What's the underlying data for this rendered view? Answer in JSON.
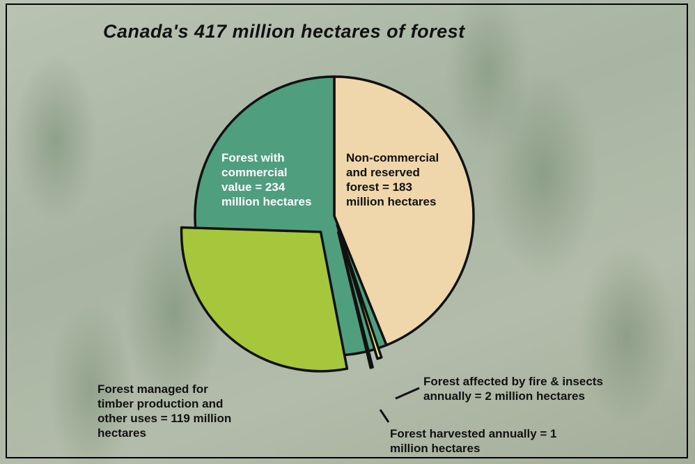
{
  "chart_data": {
    "type": "pie",
    "title": "Canada's 417 million hectares of forest",
    "slices": [
      {
        "name": "Non-commercial and reserved forest = 183 million hectares",
        "value": 183,
        "color": "#efd7ab"
      },
      {
        "name": "Forest with commercial value = 234 million hectares",
        "value": 234,
        "color": "#4f9e7e",
        "subsets": [
          {
            "name": "Forest affected by fire & insects annually = 2 million hectares",
            "value": 2,
            "color": "#f0f07a"
          },
          {
            "name": "Forest harvested annually = 1 million hectares",
            "value": 1,
            "color": "#f3f0b0"
          },
          {
            "name": "Forest managed for timber production and other uses = 119 million hectares",
            "value": 119,
            "color": "#a6c63c"
          }
        ]
      }
    ]
  }
}
